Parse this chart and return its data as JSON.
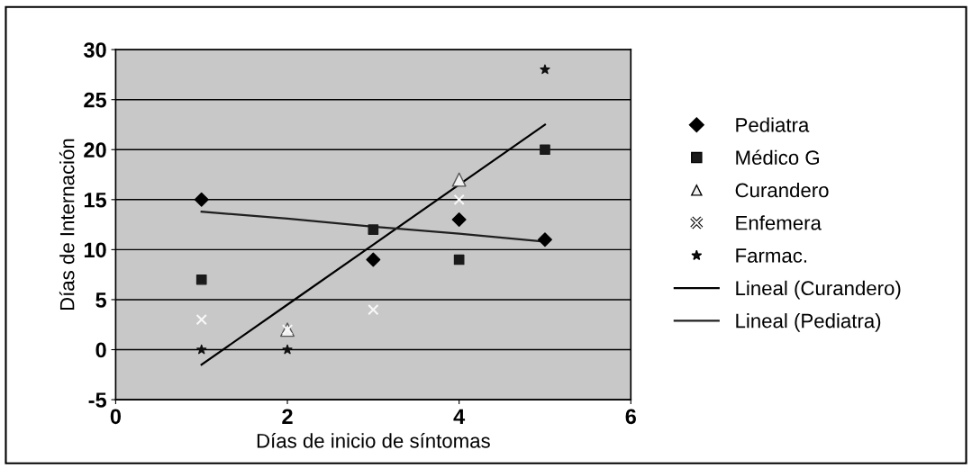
{
  "chart_data": {
    "type": "scatter",
    "xlabel": "Días de inicio de síntomas",
    "ylabel": "Días de Internación",
    "x": [
      1,
      2,
      3,
      4,
      5
    ],
    "xlim": [
      0,
      6
    ],
    "xticks": [
      0,
      2,
      4,
      6
    ],
    "ylim": [
      -5,
      30
    ],
    "yticks": [
      -5,
      0,
      5,
      10,
      15,
      20,
      25,
      30
    ],
    "grid": "y",
    "legend": "right",
    "series": [
      {
        "name": "Pediatra",
        "color": "#000000",
        "marker": "diamond",
        "values": [
          15,
          null,
          9,
          13,
          11
        ]
      },
      {
        "name": "Médico G",
        "color": "#1a1a1a",
        "marker": "square",
        "values": [
          7,
          null,
          12,
          9,
          20
        ]
      },
      {
        "name": "Curandero",
        "color": "#f0f0f0",
        "marker": "triangle",
        "values": [
          null,
          2,
          null,
          17,
          null
        ]
      },
      {
        "name": "Enfemera",
        "color": "#f8f8f8",
        "marker": "cross",
        "values": [
          3,
          2,
          4,
          15,
          null
        ]
      },
      {
        "name": "Farmac.",
        "color": "#101010",
        "marker": "star",
        "values": [
          0,
          0,
          null,
          null,
          28
        ]
      },
      {
        "name": "Lineal (Curandero)",
        "type": "line",
        "color": "#000000",
        "marker": "none",
        "line_style": "solid",
        "values": [
          -1.5,
          4.5,
          10.5,
          16.5,
          22.5
        ]
      },
      {
        "name": "Lineal (Pediatra)",
        "type": "line",
        "color": "#202020",
        "marker": "none",
        "line_style": "solid",
        "values": [
          13.8,
          13.1,
          12.3,
          11.6,
          10.8
        ]
      }
    ]
  }
}
